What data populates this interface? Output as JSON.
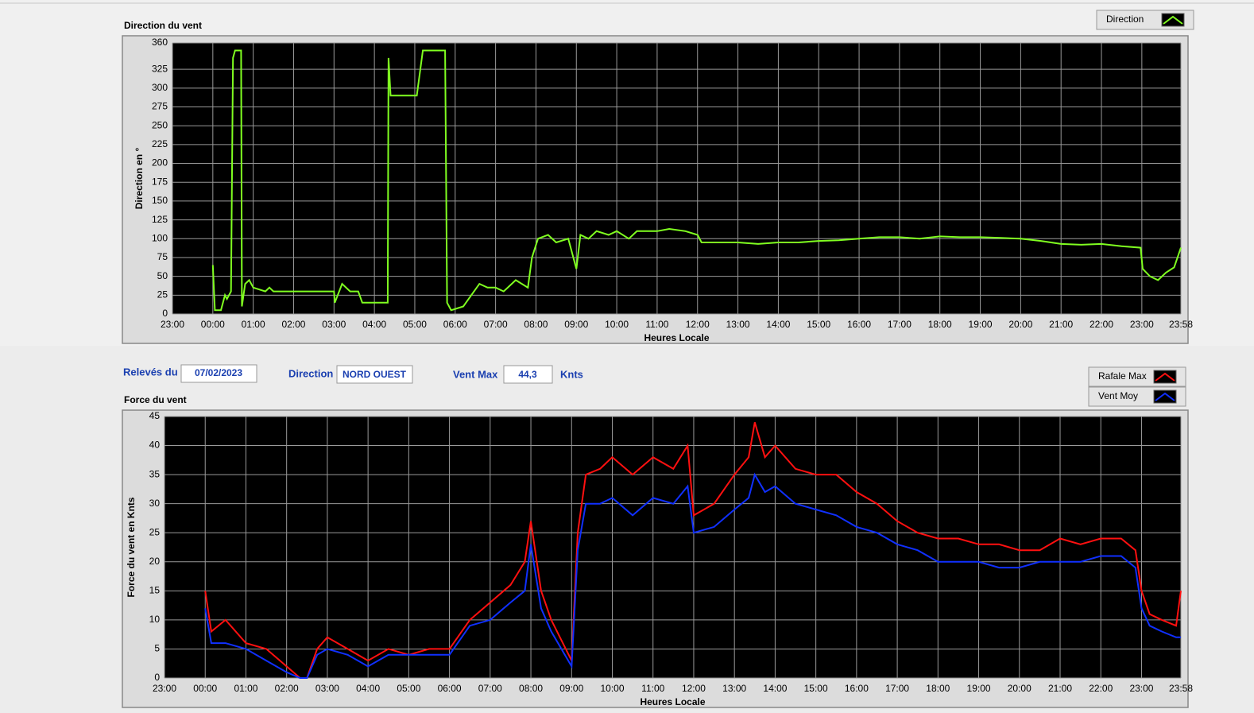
{
  "chart_data": [
    {
      "type": "line",
      "title": "Direction du vent",
      "y_label": "Direction en °",
      "x_label": "Heures Locale",
      "xlim": [
        0,
        24.967
      ],
      "xticks": [
        {
          "value": 0,
          "label": "23:00"
        },
        {
          "value": 1,
          "label": "00:00"
        },
        {
          "value": 2,
          "label": "01:00"
        },
        {
          "value": 3,
          "label": "02:00"
        },
        {
          "value": 4,
          "label": "03:00"
        },
        {
          "value": 5,
          "label": "04:00"
        },
        {
          "value": 6,
          "label": "05:00"
        },
        {
          "value": 7,
          "label": "06:00"
        },
        {
          "value": 8,
          "label": "07:00"
        },
        {
          "value": 9,
          "label": "08:00"
        },
        {
          "value": 10,
          "label": "09:00"
        },
        {
          "value": 11,
          "label": "10:00"
        },
        {
          "value": 12,
          "label": "11:00"
        },
        {
          "value": 13,
          "label": "12:00"
        },
        {
          "value": 14,
          "label": "13:00"
        },
        {
          "value": 15,
          "label": "14:00"
        },
        {
          "value": 16,
          "label": "15:00"
        },
        {
          "value": 17,
          "label": "16:00"
        },
        {
          "value": 18,
          "label": "17:00"
        },
        {
          "value": 19,
          "label": "18:00"
        },
        {
          "value": 20,
          "label": "19:00"
        },
        {
          "value": 21,
          "label": "20:00"
        },
        {
          "value": 22,
          "label": "21:00"
        },
        {
          "value": 23,
          "label": "22:00"
        },
        {
          "value": 24,
          "label": "23:00"
        },
        {
          "value": 24.967,
          "label": "23:58"
        }
      ],
      "ylim": [
        0,
        360
      ],
      "yticks": [
        0,
        25,
        50,
        75,
        100,
        125,
        150,
        175,
        200,
        225,
        250,
        275,
        300,
        325,
        360
      ],
      "grid": true,
      "x": [
        1.0,
        1.05,
        1.2,
        1.3,
        1.35,
        1.45,
        1.5,
        1.55,
        1.7,
        1.72,
        1.8,
        1.9,
        2.0,
        2.3,
        2.4,
        2.5,
        3.0,
        3.5,
        4.0,
        4.02,
        4.2,
        4.4,
        4.6,
        4.7,
        5.0,
        5.33,
        5.35,
        5.4,
        6.05,
        6.2,
        6.75,
        6.8,
        6.9,
        7.2,
        7.4,
        7.6,
        7.8,
        8.0,
        8.2,
        8.5,
        8.8,
        8.9,
        9.05,
        9.3,
        9.5,
        9.8,
        10.0,
        10.1,
        10.3,
        10.5,
        10.8,
        11.0,
        11.3,
        11.5,
        12.0,
        12.3,
        12.7,
        13.0,
        13.1,
        13.5,
        14.0,
        14.5,
        15.0,
        15.5,
        16.0,
        16.5,
        17.0,
        17.5,
        18.0,
        18.5,
        19.0,
        19.5,
        20.0,
        20.5,
        21.0,
        21.5,
        22.0,
        22.5,
        23.0,
        23.5,
        23.97,
        24.02,
        24.2,
        24.4,
        24.6,
        24.8,
        24.967
      ],
      "series": [
        {
          "name": "Direction",
          "color": "#80ff20",
          "values": [
            65,
            5,
            5,
            25,
            20,
            30,
            340,
            350,
            350,
            10,
            40,
            45,
            35,
            30,
            35,
            30,
            30,
            30,
            30,
            15,
            40,
            30,
            30,
            15,
            15,
            15,
            340,
            290,
            290,
            350,
            350,
            15,
            5,
            10,
            25,
            40,
            35,
            35,
            30,
            45,
            35,
            75,
            100,
            105,
            95,
            100,
            60,
            105,
            100,
            110,
            105,
            110,
            100,
            110,
            110,
            113,
            110,
            105,
            95,
            95,
            95,
            93,
            95,
            95,
            97,
            98,
            100,
            102,
            102,
            100,
            103,
            102,
            102,
            101,
            100,
            97,
            93,
            92,
            93,
            90,
            88,
            60,
            50,
            45,
            55,
            62,
            88
          ]
        }
      ]
    },
    {
      "type": "line",
      "title": "Force du vent",
      "y_label": "Force du vent en Knts",
      "x_label": "Heures Locale",
      "xlim": [
        0,
        24.967
      ],
      "xticks": [
        {
          "value": 0,
          "label": "23:00"
        },
        {
          "value": 1,
          "label": "00:00"
        },
        {
          "value": 2,
          "label": "01:00"
        },
        {
          "value": 3,
          "label": "02:00"
        },
        {
          "value": 4,
          "label": "03:00"
        },
        {
          "value": 5,
          "label": "04:00"
        },
        {
          "value": 6,
          "label": "05:00"
        },
        {
          "value": 7,
          "label": "06:00"
        },
        {
          "value": 8,
          "label": "07:00"
        },
        {
          "value": 9,
          "label": "08:00"
        },
        {
          "value": 10,
          "label": "09:00"
        },
        {
          "value": 11,
          "label": "10:00"
        },
        {
          "value": 12,
          "label": "11:00"
        },
        {
          "value": 13,
          "label": "12:00"
        },
        {
          "value": 14,
          "label": "13:00"
        },
        {
          "value": 15,
          "label": "14:00"
        },
        {
          "value": 16,
          "label": "15:00"
        },
        {
          "value": 17,
          "label": "16:00"
        },
        {
          "value": 18,
          "label": "17:00"
        },
        {
          "value": 19,
          "label": "18:00"
        },
        {
          "value": 20,
          "label": "19:00"
        },
        {
          "value": 21,
          "label": "20:00"
        },
        {
          "value": 22,
          "label": "21:00"
        },
        {
          "value": 23,
          "label": "22:00"
        },
        {
          "value": 24,
          "label": "23:00"
        },
        {
          "value": 24.967,
          "label": "23:58"
        }
      ],
      "ylim": [
        0,
        45
      ],
      "yticks": [
        0,
        5,
        10,
        15,
        20,
        25,
        30,
        35,
        40,
        45
      ],
      "grid": true,
      "x": [
        1.0,
        1.15,
        1.5,
        2.0,
        2.5,
        3.0,
        3.33,
        3.5,
        3.75,
        4.0,
        4.5,
        5.0,
        5.5,
        6.0,
        6.5,
        7.0,
        7.5,
        8.0,
        8.5,
        8.85,
        9.0,
        9.25,
        9.5,
        10.0,
        10.15,
        10.35,
        10.7,
        11.0,
        11.5,
        12.0,
        12.5,
        12.85,
        13.0,
        13.5,
        14.0,
        14.35,
        14.5,
        14.75,
        15.0,
        15.5,
        16.0,
        16.5,
        17.0,
        17.5,
        18.0,
        18.5,
        19.0,
        19.5,
        20.0,
        20.5,
        21.0,
        21.5,
        22.0,
        22.5,
        23.0,
        23.5,
        23.85,
        24.0,
        24.2,
        24.5,
        24.85,
        24.967
      ],
      "series": [
        {
          "name": "Rafale Max",
          "color": "#ff1010",
          "values": [
            15,
            8,
            10,
            6,
            5,
            2,
            0,
            0,
            5,
            7,
            5,
            3,
            5,
            4,
            5,
            5,
            10,
            13,
            16,
            20,
            27,
            15,
            10,
            3,
            25,
            35,
            36,
            38,
            35,
            38,
            36,
            40,
            28,
            30,
            35,
            38,
            44,
            38,
            40,
            36,
            35,
            35,
            32,
            30,
            27,
            25,
            24,
            24,
            23,
            23,
            22,
            22,
            24,
            23,
            24,
            24,
            22,
            15,
            11,
            10,
            9,
            15
          ]
        },
        {
          "name": "Vent Moy",
          "color": "#1030ff",
          "values": [
            12,
            6,
            6,
            5,
            3,
            1,
            0,
            0,
            4,
            5,
            4,
            2,
            4,
            4,
            4,
            4,
            9,
            10,
            13,
            15,
            23,
            12,
            8,
            2,
            22,
            30,
            30,
            31,
            28,
            31,
            30,
            33,
            25,
            26,
            29,
            31,
            35,
            32,
            33,
            30,
            29,
            28,
            26,
            25,
            23,
            22,
            20,
            20,
            20,
            19,
            19,
            20,
            20,
            20,
            21,
            21,
            19,
            12,
            9,
            8,
            7,
            7
          ]
        }
      ]
    }
  ],
  "panel": {
    "date_label": "Relevés du",
    "date": "07/02/2023",
    "direction_label": "Direction",
    "direction": "NORD OUEST",
    "max_label": "Vent Max",
    "max": "44,3",
    "unit": "Knts"
  }
}
